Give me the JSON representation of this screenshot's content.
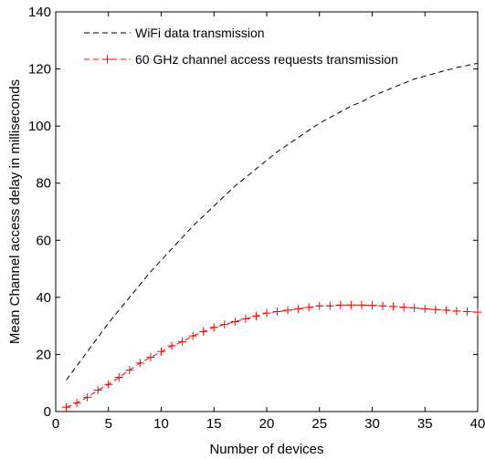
{
  "chart_data": {
    "type": "line",
    "xlabel": "Number of devices",
    "ylabel": "Mean Channel access delay in milliseconds",
    "xlim": [
      0,
      40
    ],
    "ylim": [
      0,
      140
    ],
    "xticks": [
      0,
      5,
      10,
      15,
      20,
      25,
      30,
      35,
      40
    ],
    "yticks": [
      0,
      20,
      40,
      60,
      80,
      100,
      120,
      140
    ],
    "xtick_labels": [
      "0",
      "5",
      "10",
      "15",
      "20",
      "25",
      "30",
      "35",
      "40"
    ],
    "ytick_labels": [
      "0",
      "20",
      "40",
      "60",
      "80",
      "100",
      "120",
      "140"
    ],
    "grid": false,
    "legend_position": "top-left",
    "series": [
      {
        "name": "WiFi data transmission",
        "color": "#000000",
        "line_style": "dashed",
        "marker": "none",
        "x": [
          1,
          2,
          3,
          4,
          5,
          6,
          7,
          8,
          9,
          10,
          11,
          12,
          13,
          14,
          15,
          16,
          17,
          18,
          19,
          20,
          21,
          22,
          23,
          24,
          25,
          26,
          27,
          28,
          29,
          30,
          31,
          32,
          33,
          34,
          35,
          36,
          37,
          38,
          39,
          40
        ],
        "values": [
          11,
          16,
          21,
          26,
          31,
          35.5,
          40,
          44.5,
          49,
          53,
          57,
          61,
          65,
          68.5,
          72,
          75.5,
          79,
          82,
          85,
          88,
          91,
          93.5,
          96,
          98.5,
          101,
          103,
          105,
          107,
          108.5,
          110.5,
          112,
          113.5,
          115,
          116.5,
          117.5,
          118.5,
          119.5,
          120.5,
          121.2,
          122
        ]
      },
      {
        "name": "60 GHz channel access requests transmission",
        "color": "#ff0000",
        "line_style": "dashed",
        "marker": "plus",
        "x": [
          1,
          2,
          3,
          4,
          5,
          6,
          7,
          8,
          9,
          10,
          11,
          12,
          13,
          14,
          15,
          16,
          17,
          18,
          19,
          20,
          21,
          22,
          23,
          24,
          25,
          26,
          27,
          28,
          29,
          30,
          31,
          32,
          33,
          34,
          35,
          36,
          37,
          38,
          39,
          40
        ],
        "values": [
          1.5,
          3,
          5,
          7.5,
          9.5,
          12,
          14.5,
          17,
          19,
          21,
          23,
          24.5,
          26.5,
          28,
          29.5,
          30.5,
          31.5,
          32.5,
          33.5,
          34.5,
          35,
          35.5,
          36,
          36.5,
          37,
          37,
          37.3,
          37.3,
          37.3,
          37.2,
          37,
          36.8,
          36.5,
          36.3,
          36,
          35.7,
          35.5,
          35.2,
          35,
          34.8
        ]
      }
    ]
  }
}
